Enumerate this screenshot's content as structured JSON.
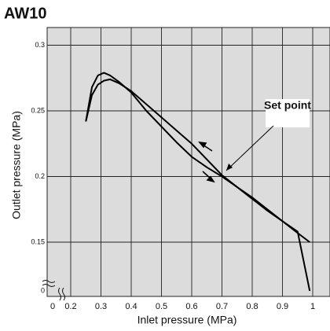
{
  "chart_data": {
    "type": "line",
    "title": "AW10",
    "x_label": "Inlet pressure (MPa)",
    "y_label": "Outlet pressure (MPa)",
    "annotation": "Set point",
    "x": [
      0.25,
      0.27,
      0.29,
      0.31,
      0.33,
      0.36,
      0.4,
      0.45,
      0.5,
      0.55,
      0.6,
      0.65,
      0.7,
      0.75,
      0.8,
      0.85,
      0.9,
      0.95,
      0.99
    ],
    "series": [
      {
        "color": "#000000",
        "values": [
          0.242,
          0.268,
          0.277,
          0.279,
          0.277,
          0.272,
          0.264,
          0.25,
          0.238,
          0.226,
          0.215,
          0.207,
          0.2,
          0.192,
          0.183,
          0.174,
          0.166,
          0.157,
          0.15
        ]
      },
      {
        "color": "#000000",
        "values": [
          0.242,
          0.262,
          0.27,
          0.273,
          0.274,
          0.271,
          0.265,
          0.255,
          0.245,
          0.235,
          0.225,
          0.213,
          0.201,
          0.192,
          0.184,
          0.175,
          0.166,
          0.158,
          0.149
        ]
      }
    ],
    "xlim": [
      0,
      1.06
    ],
    "ylim": [
      0,
      0.31
    ],
    "xticks": [
      0,
      0.2,
      0.3,
      0.4,
      0.5,
      0.6,
      0.7,
      0.8,
      0.9,
      1
    ],
    "yticks": [
      0,
      0.15,
      0.2,
      0.25,
      0.3
    ],
    "grid": true
  }
}
